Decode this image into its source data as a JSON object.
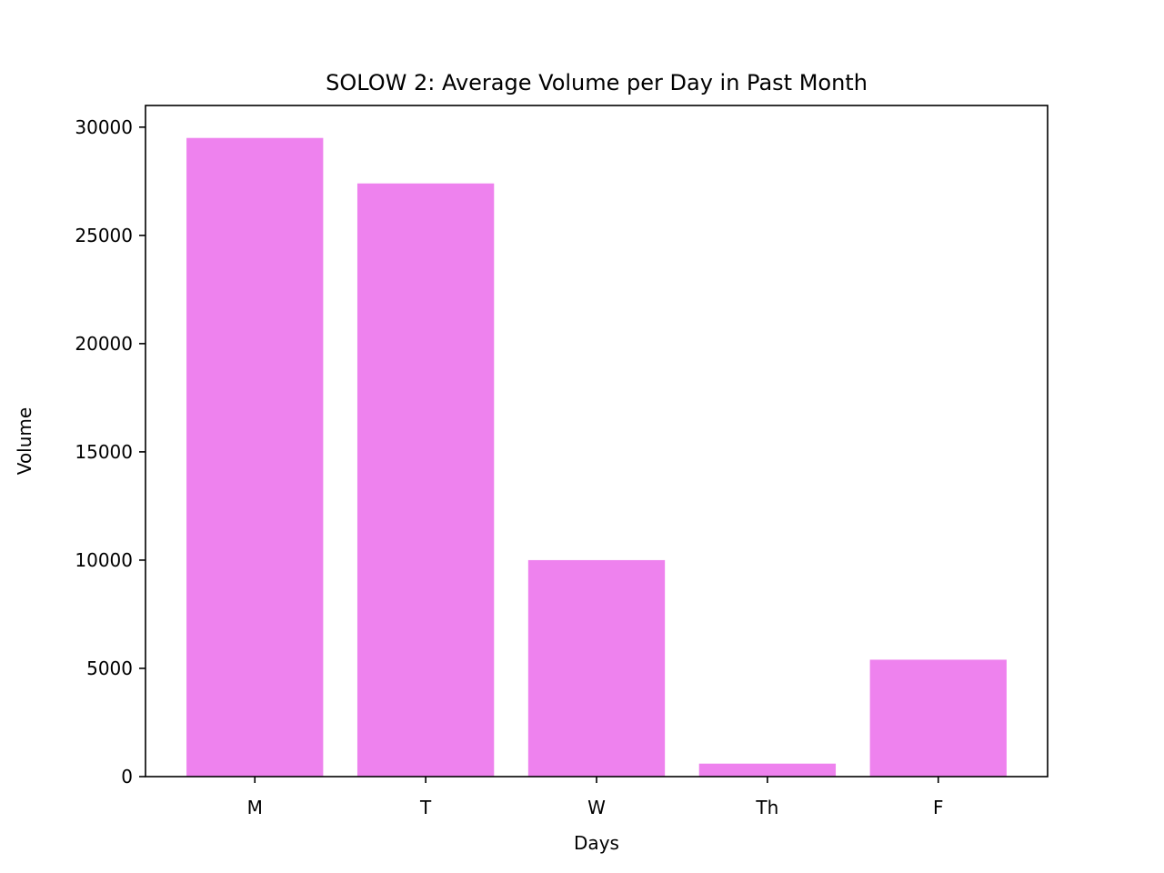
{
  "chart_data": {
    "type": "bar",
    "title": "SOLOW 2: Average Volume per Day in Past Month",
    "xlabel": "Days",
    "ylabel": "Volume",
    "categories": [
      "M",
      "T",
      "W",
      "Th",
      "F"
    ],
    "values": [
      29500,
      27400,
      10000,
      600,
      5400
    ],
    "ylim": [
      0,
      31000
    ],
    "yticks": [
      0,
      5000,
      10000,
      15000,
      20000,
      25000,
      30000
    ],
    "bar_color": "#ee82ee",
    "grid": false,
    "legend": "none"
  }
}
